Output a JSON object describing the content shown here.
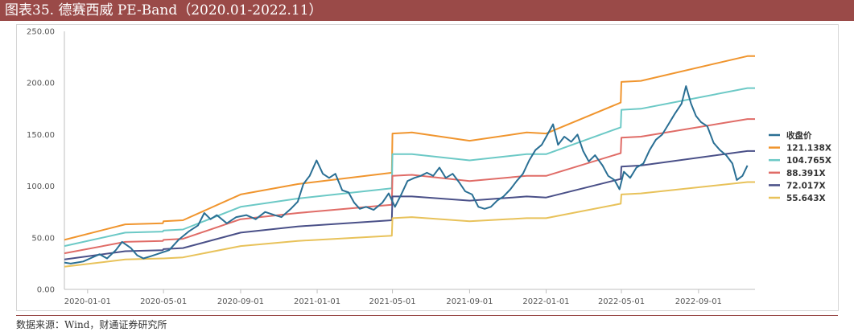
{
  "title": "图表35.  德赛西威 PE-Band（2020.01-2022.11）",
  "source": "数据来源：Wind，财通证券研究所",
  "chart_data": {
    "type": "line",
    "title": "图表35.  德赛西威 PE-Band（2020.01-2022.11）",
    "xlabel": "",
    "ylabel": "",
    "ylim": [
      0,
      250
    ],
    "y_ticks": [
      "0.00",
      "50.00",
      "100.00",
      "150.00",
      "200.00",
      "250.00"
    ],
    "x_ticks": [
      "2020-01-01",
      "2020-05-01",
      "2020-09-01",
      "2021-01-01",
      "2021-05-01",
      "2021-09-01",
      "2022-01-01",
      "2022-05-01",
      "2022-09-01"
    ],
    "xlim": [
      "2019-11-25",
      "2022-11-30"
    ],
    "grid": false,
    "legend_position": "right",
    "series": [
      {
        "name": "收盘价",
        "color": "#2a6f94",
        "points": [
          [
            "2019-11-25",
            26
          ],
          [
            "2019-12-05",
            25
          ],
          [
            "2019-12-15",
            26
          ],
          [
            "2019-12-25",
            27
          ],
          [
            "2020-01-05",
            30
          ],
          [
            "2020-01-20",
            34
          ],
          [
            "2020-02-01",
            30
          ],
          [
            "2020-02-15",
            38
          ],
          [
            "2020-02-25",
            46
          ],
          [
            "2020-03-10",
            40
          ],
          [
            "2020-03-20",
            33
          ],
          [
            "2020-03-30",
            30
          ],
          [
            "2020-04-10",
            32
          ],
          [
            "2020-04-25",
            35
          ],
          [
            "2020-05-10",
            38
          ],
          [
            "2020-05-25",
            48
          ],
          [
            "2020-06-10",
            56
          ],
          [
            "2020-06-25",
            62
          ],
          [
            "2020-07-05",
            74
          ],
          [
            "2020-07-15",
            68
          ],
          [
            "2020-07-25",
            72
          ],
          [
            "2020-08-10",
            64
          ],
          [
            "2020-08-25",
            70
          ],
          [
            "2020-09-10",
            72
          ],
          [
            "2020-09-25",
            68
          ],
          [
            "2020-10-10",
            75
          ],
          [
            "2020-10-25",
            72
          ],
          [
            "2020-11-05",
            70
          ],
          [
            "2020-11-20",
            78
          ],
          [
            "2020-12-01",
            85
          ],
          [
            "2020-12-10",
            102
          ],
          [
            "2020-12-20",
            110
          ],
          [
            "2020-12-31",
            125
          ],
          [
            "2021-01-10",
            112
          ],
          [
            "2021-01-20",
            108
          ],
          [
            "2021-01-30",
            112
          ],
          [
            "2021-02-10",
            96
          ],
          [
            "2021-02-20",
            94
          ],
          [
            "2021-03-01",
            84
          ],
          [
            "2021-03-10",
            78
          ],
          [
            "2021-03-20",
            80
          ],
          [
            "2021-04-01",
            77
          ],
          [
            "2021-04-15",
            84
          ],
          [
            "2021-04-25",
            93
          ],
          [
            "2021-05-05",
            80
          ],
          [
            "2021-05-15",
            92
          ],
          [
            "2021-05-25",
            105
          ],
          [
            "2021-06-05",
            108
          ],
          [
            "2021-06-15",
            110
          ],
          [
            "2021-06-25",
            113
          ],
          [
            "2021-07-05",
            110
          ],
          [
            "2021-07-15",
            118
          ],
          [
            "2021-07-25",
            108
          ],
          [
            "2021-08-05",
            112
          ],
          [
            "2021-08-15",
            104
          ],
          [
            "2021-08-25",
            95
          ],
          [
            "2021-09-05",
            92
          ],
          [
            "2021-09-15",
            80
          ],
          [
            "2021-09-25",
            78
          ],
          [
            "2021-10-05",
            80
          ],
          [
            "2021-10-15",
            86
          ],
          [
            "2021-10-25",
            90
          ],
          [
            "2021-11-05",
            97
          ],
          [
            "2021-11-15",
            105
          ],
          [
            "2021-11-25",
            112
          ],
          [
            "2021-12-05",
            125
          ],
          [
            "2021-12-15",
            135
          ],
          [
            "2021-12-25",
            140
          ],
          [
            "2022-01-05",
            152
          ],
          [
            "2022-01-12",
            160
          ],
          [
            "2022-01-20",
            140
          ],
          [
            "2022-01-30",
            148
          ],
          [
            "2022-02-10",
            143
          ],
          [
            "2022-02-20",
            150
          ],
          [
            "2022-03-01",
            134
          ],
          [
            "2022-03-10",
            124
          ],
          [
            "2022-03-20",
            130
          ],
          [
            "2022-04-01",
            120
          ],
          [
            "2022-04-10",
            110
          ],
          [
            "2022-04-20",
            106
          ],
          [
            "2022-04-28",
            97
          ],
          [
            "2022-05-05",
            114
          ],
          [
            "2022-05-15",
            108
          ],
          [
            "2022-05-25",
            118
          ],
          [
            "2022-06-05",
            122
          ],
          [
            "2022-06-15",
            135
          ],
          [
            "2022-06-25",
            145
          ],
          [
            "2022-07-05",
            150
          ],
          [
            "2022-07-15",
            160
          ],
          [
            "2022-07-25",
            170
          ],
          [
            "2022-08-05",
            180
          ],
          [
            "2022-08-12",
            197
          ],
          [
            "2022-08-20",
            180
          ],
          [
            "2022-08-28",
            168
          ],
          [
            "2022-09-05",
            162
          ],
          [
            "2022-09-15",
            158
          ],
          [
            "2022-09-25",
            142
          ],
          [
            "2022-10-05",
            135
          ],
          [
            "2022-10-15",
            130
          ],
          [
            "2022-10-25",
            122
          ],
          [
            "2022-11-01",
            106
          ],
          [
            "2022-11-10",
            110
          ],
          [
            "2022-11-18",
            120
          ]
        ]
      },
      {
        "name": "121.138X",
        "color": "#f0952e",
        "points": [
          [
            "2019-11-25",
            48
          ],
          [
            "2020-03-01",
            63
          ],
          [
            "2020-04-30",
            64
          ],
          [
            "2020-05-01",
            66
          ],
          [
            "2020-06-01",
            67
          ],
          [
            "2020-09-01",
            92
          ],
          [
            "2020-12-01",
            102
          ],
          [
            "2021-04-30",
            113
          ],
          [
            "2021-05-01",
            151
          ],
          [
            "2021-06-01",
            152
          ],
          [
            "2021-09-01",
            144
          ],
          [
            "2021-12-01",
            152
          ],
          [
            "2022-01-01",
            151
          ],
          [
            "2022-04-30",
            181
          ],
          [
            "2022-05-01",
            201
          ],
          [
            "2022-06-01",
            202
          ],
          [
            "2022-11-18",
            226
          ],
          [
            "2022-11-30",
            226
          ]
        ]
      },
      {
        "name": "104.765X",
        "color": "#6cc9c6",
        "points": [
          [
            "2019-11-25",
            42
          ],
          [
            "2020-03-01",
            55
          ],
          [
            "2020-04-30",
            56
          ],
          [
            "2020-05-01",
            57
          ],
          [
            "2020-06-01",
            58
          ],
          [
            "2020-09-01",
            80
          ],
          [
            "2020-12-01",
            88
          ],
          [
            "2021-04-30",
            98
          ],
          [
            "2021-05-01",
            131
          ],
          [
            "2021-06-01",
            131
          ],
          [
            "2021-09-01",
            125
          ],
          [
            "2021-12-01",
            131
          ],
          [
            "2022-01-01",
            131
          ],
          [
            "2022-04-30",
            157
          ],
          [
            "2022-05-01",
            174
          ],
          [
            "2022-06-01",
            175
          ],
          [
            "2022-11-18",
            195
          ],
          [
            "2022-11-30",
            195
          ]
        ]
      },
      {
        "name": "88.391X",
        "color": "#e06c67",
        "points": [
          [
            "2019-11-25",
            35
          ],
          [
            "2020-03-01",
            46
          ],
          [
            "2020-04-30",
            47
          ],
          [
            "2020-05-01",
            48
          ],
          [
            "2020-06-01",
            49
          ],
          [
            "2020-09-01",
            68
          ],
          [
            "2020-12-01",
            74
          ],
          [
            "2021-04-30",
            82
          ],
          [
            "2021-05-01",
            110
          ],
          [
            "2021-06-01",
            111
          ],
          [
            "2021-09-01",
            105
          ],
          [
            "2021-12-01",
            110
          ],
          [
            "2022-01-01",
            110
          ],
          [
            "2022-04-30",
            132
          ],
          [
            "2022-05-01",
            147
          ],
          [
            "2022-06-01",
            148
          ],
          [
            "2022-11-18",
            165
          ],
          [
            "2022-11-30",
            165
          ]
        ]
      },
      {
        "name": "72.017X",
        "color": "#4a5088",
        "points": [
          [
            "2019-11-25",
            29
          ],
          [
            "2020-03-01",
            37
          ],
          [
            "2020-04-30",
            38
          ],
          [
            "2020-05-01",
            39
          ],
          [
            "2020-06-01",
            40
          ],
          [
            "2020-09-01",
            55
          ],
          [
            "2020-12-01",
            61
          ],
          [
            "2021-04-30",
            67
          ],
          [
            "2021-05-01",
            90
          ],
          [
            "2021-06-01",
            90
          ],
          [
            "2021-09-01",
            86
          ],
          [
            "2021-12-01",
            90
          ],
          [
            "2022-01-01",
            89
          ],
          [
            "2022-04-30",
            107
          ],
          [
            "2022-05-01",
            119
          ],
          [
            "2022-06-01",
            120
          ],
          [
            "2022-11-18",
            134
          ],
          [
            "2022-11-30",
            134
          ]
        ]
      },
      {
        "name": "55.643X",
        "color": "#e8c25a",
        "points": [
          [
            "2019-11-25",
            22
          ],
          [
            "2020-03-01",
            29
          ],
          [
            "2020-04-30",
            30
          ],
          [
            "2020-05-01",
            30
          ],
          [
            "2020-06-01",
            31
          ],
          [
            "2020-09-01",
            42
          ],
          [
            "2020-12-01",
            47
          ],
          [
            "2021-04-30",
            52
          ],
          [
            "2021-05-01",
            69
          ],
          [
            "2021-06-01",
            70
          ],
          [
            "2021-09-01",
            66
          ],
          [
            "2021-12-01",
            69
          ],
          [
            "2022-01-01",
            69
          ],
          [
            "2022-04-30",
            83
          ],
          [
            "2022-05-01",
            92
          ],
          [
            "2022-06-01",
            93
          ],
          [
            "2022-11-18",
            104
          ],
          [
            "2022-11-30",
            104
          ]
        ]
      }
    ]
  }
}
